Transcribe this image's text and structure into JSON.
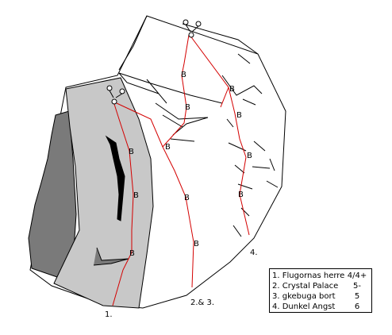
{
  "routes": [
    {
      "label": "1.",
      "name": "Flugornas herre",
      "grade": "4/4+"
    },
    {
      "label": "2.",
      "name": "Crystal Palace",
      "grade": "5-"
    },
    {
      "label": "3.",
      "name": "gkebuga bort",
      "grade": "5"
    },
    {
      "label": "4.",
      "name": "Dunkel Angst",
      "grade": "6"
    }
  ],
  "route_labels": {
    "r1": "1.",
    "r23": "2.& 3.",
    "r4": "4."
  },
  "bolt_symbol": "B",
  "colors": {
    "route_line": "#d40000",
    "slab_fill": "#c8c8c8",
    "shadow_fill": "#7a7a7a",
    "crack_fill": "#000000"
  }
}
